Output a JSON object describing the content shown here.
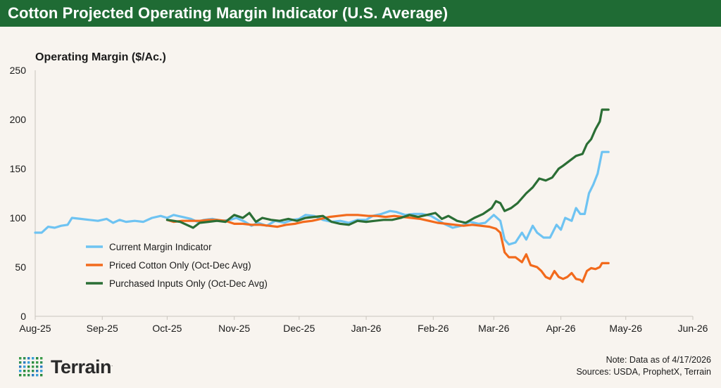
{
  "header": {
    "title": "Cotton Projected Operating Margin Indicator (U.S. Average)"
  },
  "footer": {
    "note": "Note: Data as of 4/17/2026",
    "sources": "Sources: USDA, ProphetX, Terrain",
    "logo_text": "Terrain",
    "logo_mark": "."
  },
  "colors": {
    "title_bar": "#1f6b34",
    "background": "#f8f4ef",
    "current": "#6ec3f2",
    "priced_cotton": "#f26a1c",
    "purchased_inputs": "#2b6e35",
    "logo_green": "#2b8a3e",
    "logo_blue": "#2b7cc2"
  },
  "icons": {
    "logo": "terrain-dot-grid-icon"
  },
  "chart_data": {
    "type": "line",
    "ylabel": "Operating Margin ($/Ac.)",
    "ylim": [
      0,
      250
    ],
    "yticks": [
      0,
      50,
      100,
      150,
      200,
      250
    ],
    "x_range": [
      "2025-08-01",
      "2026-06-01"
    ],
    "x_ticks": [
      {
        "date": "2025-08-01",
        "label": "Aug-25"
      },
      {
        "date": "2025-09-01",
        "label": "Sep-25"
      },
      {
        "date": "2025-10-01",
        "label": "Oct-25"
      },
      {
        "date": "2025-11-01",
        "label": "Nov-25"
      },
      {
        "date": "2025-12-01",
        "label": "Dec-25"
      },
      {
        "date": "2026-01-01",
        "label": "Jan-26"
      },
      {
        "date": "2026-02-01",
        "label": "Feb-26"
      },
      {
        "date": "2026-03-01",
        "label": "Mar-26"
      },
      {
        "date": "2026-04-01",
        "label": "Apr-26"
      },
      {
        "date": "2026-05-01",
        "label": "May-26"
      },
      {
        "date": "2026-06-01",
        "label": "Jun-26"
      }
    ],
    "legend_position": "lower-left",
    "grid": false,
    "series": [
      {
        "name": "Current Margin Indicator",
        "color": "#6ec3f2",
        "points": [
          [
            "2025-08-01",
            85
          ],
          [
            "2025-08-04",
            85
          ],
          [
            "2025-08-07",
            91
          ],
          [
            "2025-08-10",
            90
          ],
          [
            "2025-08-13",
            92
          ],
          [
            "2025-08-16",
            93
          ],
          [
            "2025-08-18",
            100
          ],
          [
            "2025-08-22",
            99
          ],
          [
            "2025-08-26",
            98
          ],
          [
            "2025-08-30",
            97
          ],
          [
            "2025-09-03",
            99
          ],
          [
            "2025-09-06",
            95
          ],
          [
            "2025-09-09",
            98
          ],
          [
            "2025-09-12",
            96
          ],
          [
            "2025-09-16",
            97
          ],
          [
            "2025-09-20",
            96
          ],
          [
            "2025-09-24",
            100
          ],
          [
            "2025-09-28",
            102
          ],
          [
            "2025-10-01",
            100
          ],
          [
            "2025-10-04",
            103
          ],
          [
            "2025-10-08",
            101
          ],
          [
            "2025-10-12",
            99
          ],
          [
            "2025-10-15",
            96
          ],
          [
            "2025-10-18",
            98
          ],
          [
            "2025-10-22",
            99
          ],
          [
            "2025-10-26",
            97
          ],
          [
            "2025-10-30",
            98
          ],
          [
            "2025-11-02",
            100
          ],
          [
            "2025-11-06",
            96
          ],
          [
            "2025-11-09",
            92
          ],
          [
            "2025-11-12",
            95
          ],
          [
            "2025-11-16",
            92
          ],
          [
            "2025-11-20",
            97
          ],
          [
            "2025-11-24",
            95
          ],
          [
            "2025-11-28",
            98
          ],
          [
            "2025-12-01",
            99
          ],
          [
            "2025-12-04",
            103
          ],
          [
            "2025-12-08",
            102
          ],
          [
            "2025-12-12",
            98
          ],
          [
            "2025-12-16",
            96
          ],
          [
            "2025-12-20",
            97
          ],
          [
            "2025-12-24",
            95
          ],
          [
            "2025-12-28",
            98
          ],
          [
            "2026-01-01",
            98
          ],
          [
            "2026-01-04",
            102
          ],
          [
            "2026-01-08",
            104
          ],
          [
            "2026-01-12",
            107
          ],
          [
            "2026-01-15",
            106
          ],
          [
            "2026-01-19",
            103
          ],
          [
            "2026-01-23",
            104
          ],
          [
            "2026-01-27",
            104
          ],
          [
            "2026-01-31",
            102
          ],
          [
            "2026-02-03",
            98
          ],
          [
            "2026-02-06",
            94
          ],
          [
            "2026-02-10",
            90
          ],
          [
            "2026-02-14",
            92
          ],
          [
            "2026-02-18",
            96
          ],
          [
            "2026-02-22",
            94
          ],
          [
            "2026-02-25",
            95
          ],
          [
            "2026-03-01",
            103
          ],
          [
            "2026-03-04",
            97
          ],
          [
            "2026-03-06",
            78
          ],
          [
            "2026-03-08",
            73
          ],
          [
            "2026-03-11",
            75
          ],
          [
            "2026-03-14",
            85
          ],
          [
            "2026-03-16",
            78
          ],
          [
            "2026-03-19",
            92
          ],
          [
            "2026-03-21",
            85
          ],
          [
            "2026-03-24",
            80
          ],
          [
            "2026-03-27",
            80
          ],
          [
            "2026-03-30",
            93
          ],
          [
            "2026-04-01",
            88
          ],
          [
            "2026-04-03",
            100
          ],
          [
            "2026-04-06",
            97
          ],
          [
            "2026-04-08",
            110
          ],
          [
            "2026-04-10",
            104
          ],
          [
            "2026-04-12",
            104
          ],
          [
            "2026-04-14",
            125
          ],
          [
            "2026-04-16",
            134
          ],
          [
            "2026-04-18",
            145
          ],
          [
            "2026-04-20",
            167
          ],
          [
            "2026-04-23",
            167
          ]
        ]
      },
      {
        "name": "Priced Cotton Only (Oct-Dec Avg)",
        "color": "#f26a1c",
        "points": [
          [
            "2025-10-01",
            98
          ],
          [
            "2025-10-04",
            96
          ],
          [
            "2025-10-08",
            97
          ],
          [
            "2025-10-12",
            97
          ],
          [
            "2025-10-16",
            97
          ],
          [
            "2025-10-20",
            98
          ],
          [
            "2025-10-24",
            98
          ],
          [
            "2025-10-28",
            97
          ],
          [
            "2025-11-01",
            94
          ],
          [
            "2025-11-05",
            94
          ],
          [
            "2025-11-09",
            93
          ],
          [
            "2025-11-13",
            93
          ],
          [
            "2025-11-17",
            92
          ],
          [
            "2025-11-21",
            91
          ],
          [
            "2025-11-25",
            93
          ],
          [
            "2025-11-29",
            94
          ],
          [
            "2025-12-03",
            96
          ],
          [
            "2025-12-07",
            97
          ],
          [
            "2025-12-11",
            99
          ],
          [
            "2025-12-15",
            101
          ],
          [
            "2025-12-19",
            102
          ],
          [
            "2025-12-23",
            103
          ],
          [
            "2025-12-28",
            103
          ],
          [
            "2026-01-02",
            102
          ],
          [
            "2026-01-06",
            102
          ],
          [
            "2026-01-10",
            101
          ],
          [
            "2026-01-14",
            102
          ],
          [
            "2026-01-18",
            101
          ],
          [
            "2026-01-22",
            100
          ],
          [
            "2026-01-26",
            99
          ],
          [
            "2026-01-30",
            97
          ],
          [
            "2026-02-03",
            95
          ],
          [
            "2026-02-07",
            94
          ],
          [
            "2026-02-11",
            93
          ],
          [
            "2026-02-15",
            92
          ],
          [
            "2026-02-19",
            93
          ],
          [
            "2026-02-23",
            92
          ],
          [
            "2026-02-27",
            91
          ],
          [
            "2026-03-02",
            89
          ],
          [
            "2026-03-04",
            85
          ],
          [
            "2026-03-06",
            65
          ],
          [
            "2026-03-08",
            60
          ],
          [
            "2026-03-11",
            60
          ],
          [
            "2026-03-14",
            55
          ],
          [
            "2026-03-16",
            63
          ],
          [
            "2026-03-18",
            52
          ],
          [
            "2026-03-21",
            50
          ],
          [
            "2026-03-23",
            46
          ],
          [
            "2026-03-25",
            40
          ],
          [
            "2026-03-27",
            38
          ],
          [
            "2026-03-29",
            46
          ],
          [
            "2026-03-31",
            40
          ],
          [
            "2026-04-02",
            38
          ],
          [
            "2026-04-04",
            40
          ],
          [
            "2026-04-06",
            44
          ],
          [
            "2026-04-08",
            38
          ],
          [
            "2026-04-10",
            37
          ],
          [
            "2026-04-11",
            35
          ],
          [
            "2026-04-13",
            46
          ],
          [
            "2026-04-15",
            49
          ],
          [
            "2026-04-17",
            48
          ],
          [
            "2026-04-19",
            50
          ],
          [
            "2026-04-20",
            54
          ],
          [
            "2026-04-23",
            54
          ]
        ]
      },
      {
        "name": "Purchased Inputs Only (Oct-Dec Avg)",
        "color": "#2b6e35",
        "points": [
          [
            "2025-10-01",
            98
          ],
          [
            "2025-10-04",
            97
          ],
          [
            "2025-10-07",
            96
          ],
          [
            "2025-10-10",
            93
          ],
          [
            "2025-10-13",
            90
          ],
          [
            "2025-10-16",
            95
          ],
          [
            "2025-10-20",
            96
          ],
          [
            "2025-10-24",
            97
          ],
          [
            "2025-10-28",
            96
          ],
          [
            "2025-11-01",
            103
          ],
          [
            "2025-11-05",
            100
          ],
          [
            "2025-11-08",
            105
          ],
          [
            "2025-11-11",
            96
          ],
          [
            "2025-11-14",
            100
          ],
          [
            "2025-11-18",
            98
          ],
          [
            "2025-11-22",
            97
          ],
          [
            "2025-11-26",
            99
          ],
          [
            "2025-11-30",
            97
          ],
          [
            "2025-12-04",
            100
          ],
          [
            "2025-12-08",
            101
          ],
          [
            "2025-12-12",
            102
          ],
          [
            "2025-12-16",
            96
          ],
          [
            "2025-12-20",
            94
          ],
          [
            "2025-12-24",
            93
          ],
          [
            "2025-12-28",
            97
          ],
          [
            "2026-01-01",
            96
          ],
          [
            "2026-01-05",
            97
          ],
          [
            "2026-01-09",
            98
          ],
          [
            "2026-01-13",
            98
          ],
          [
            "2026-01-17",
            100
          ],
          [
            "2026-01-21",
            103
          ],
          [
            "2026-01-25",
            101
          ],
          [
            "2026-01-29",
            103
          ],
          [
            "2026-02-02",
            105
          ],
          [
            "2026-02-05",
            99
          ],
          [
            "2026-02-08",
            102
          ],
          [
            "2026-02-12",
            97
          ],
          [
            "2026-02-16",
            95
          ],
          [
            "2026-02-20",
            100
          ],
          [
            "2026-02-24",
            104
          ],
          [
            "2026-02-28",
            110
          ],
          [
            "2026-03-02",
            117
          ],
          [
            "2026-03-04",
            115
          ],
          [
            "2026-03-06",
            107
          ],
          [
            "2026-03-09",
            110
          ],
          [
            "2026-03-12",
            115
          ],
          [
            "2026-03-16",
            125
          ],
          [
            "2026-03-19",
            131
          ],
          [
            "2026-03-22",
            140
          ],
          [
            "2026-03-25",
            138
          ],
          [
            "2026-03-28",
            141
          ],
          [
            "2026-03-31",
            150
          ],
          [
            "2026-04-02",
            153
          ],
          [
            "2026-04-05",
            158
          ],
          [
            "2026-04-08",
            163
          ],
          [
            "2026-04-11",
            165
          ],
          [
            "2026-04-13",
            175
          ],
          [
            "2026-04-15",
            180
          ],
          [
            "2026-04-17",
            190
          ],
          [
            "2026-04-19",
            198
          ],
          [
            "2026-04-20",
            210
          ],
          [
            "2026-04-23",
            210
          ]
        ]
      }
    ]
  }
}
